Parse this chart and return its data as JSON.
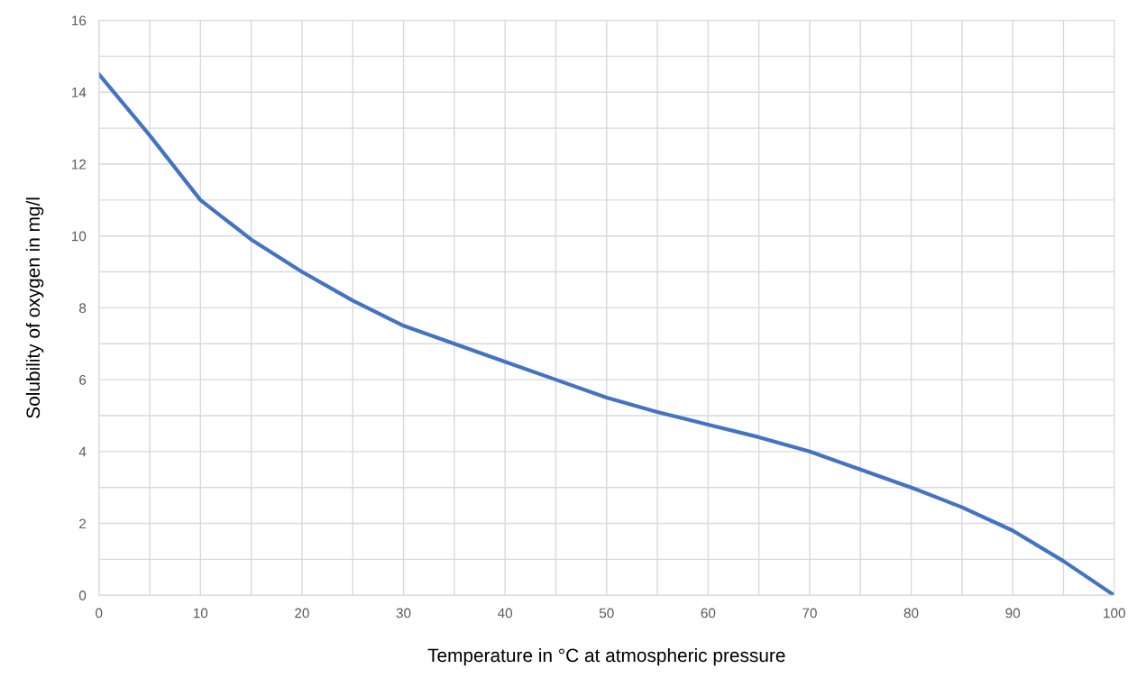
{
  "chart_data": {
    "type": "line",
    "xlabel": "Temperature in °C at atmospheric pressure",
    "ylabel": "Solubility of oxygen in mg/l",
    "x": [
      0,
      5,
      10,
      15,
      20,
      25,
      30,
      35,
      40,
      45,
      50,
      55,
      60,
      65,
      70,
      75,
      80,
      85,
      90,
      95,
      100
    ],
    "series": [
      {
        "color": "#4472c4",
        "values": [
          14.5,
          12.8,
          11.0,
          9.9,
          9.0,
          8.2,
          7.5,
          7.0,
          6.5,
          6.0,
          5.5,
          5.1,
          4.75,
          4.4,
          4.0,
          3.5,
          3.0,
          2.45,
          1.8,
          0.95,
          0
        ]
      }
    ],
    "xlim": [
      0,
      100
    ],
    "ylim": [
      0,
      16
    ],
    "xticks": [
      0,
      {
        "value": 5,
        "label": null
      },
      10,
      {
        "value": 15,
        "label": null
      },
      20,
      {
        "value": 25,
        "label": null
      },
      30,
      {
        "value": 35,
        "label": null
      },
      40,
      {
        "value": 45,
        "label": null
      },
      50,
      {
        "value": 55,
        "label": null
      },
      60,
      {
        "value": 65,
        "label": null
      },
      70,
      {
        "value": 75,
        "label": null
      },
      80,
      {
        "value": 85,
        "label": null
      },
      90,
      {
        "value": 95,
        "label": null
      },
      100
    ],
    "yticks": [
      0,
      {
        "value": 1,
        "label": null
      },
      2,
      {
        "value": 3,
        "label": null
      },
      4,
      {
        "value": 5,
        "label": null
      },
      6,
      {
        "value": 7,
        "label": null
      },
      8,
      {
        "value": 9,
        "label": null
      },
      10,
      {
        "value": 11,
        "label": null
      },
      12,
      {
        "value": 13,
        "label": null
      },
      14,
      {
        "value": 15,
        "label": null
      },
      16
    ],
    "grid": true,
    "marker": "none",
    "line_style": "solid"
  }
}
